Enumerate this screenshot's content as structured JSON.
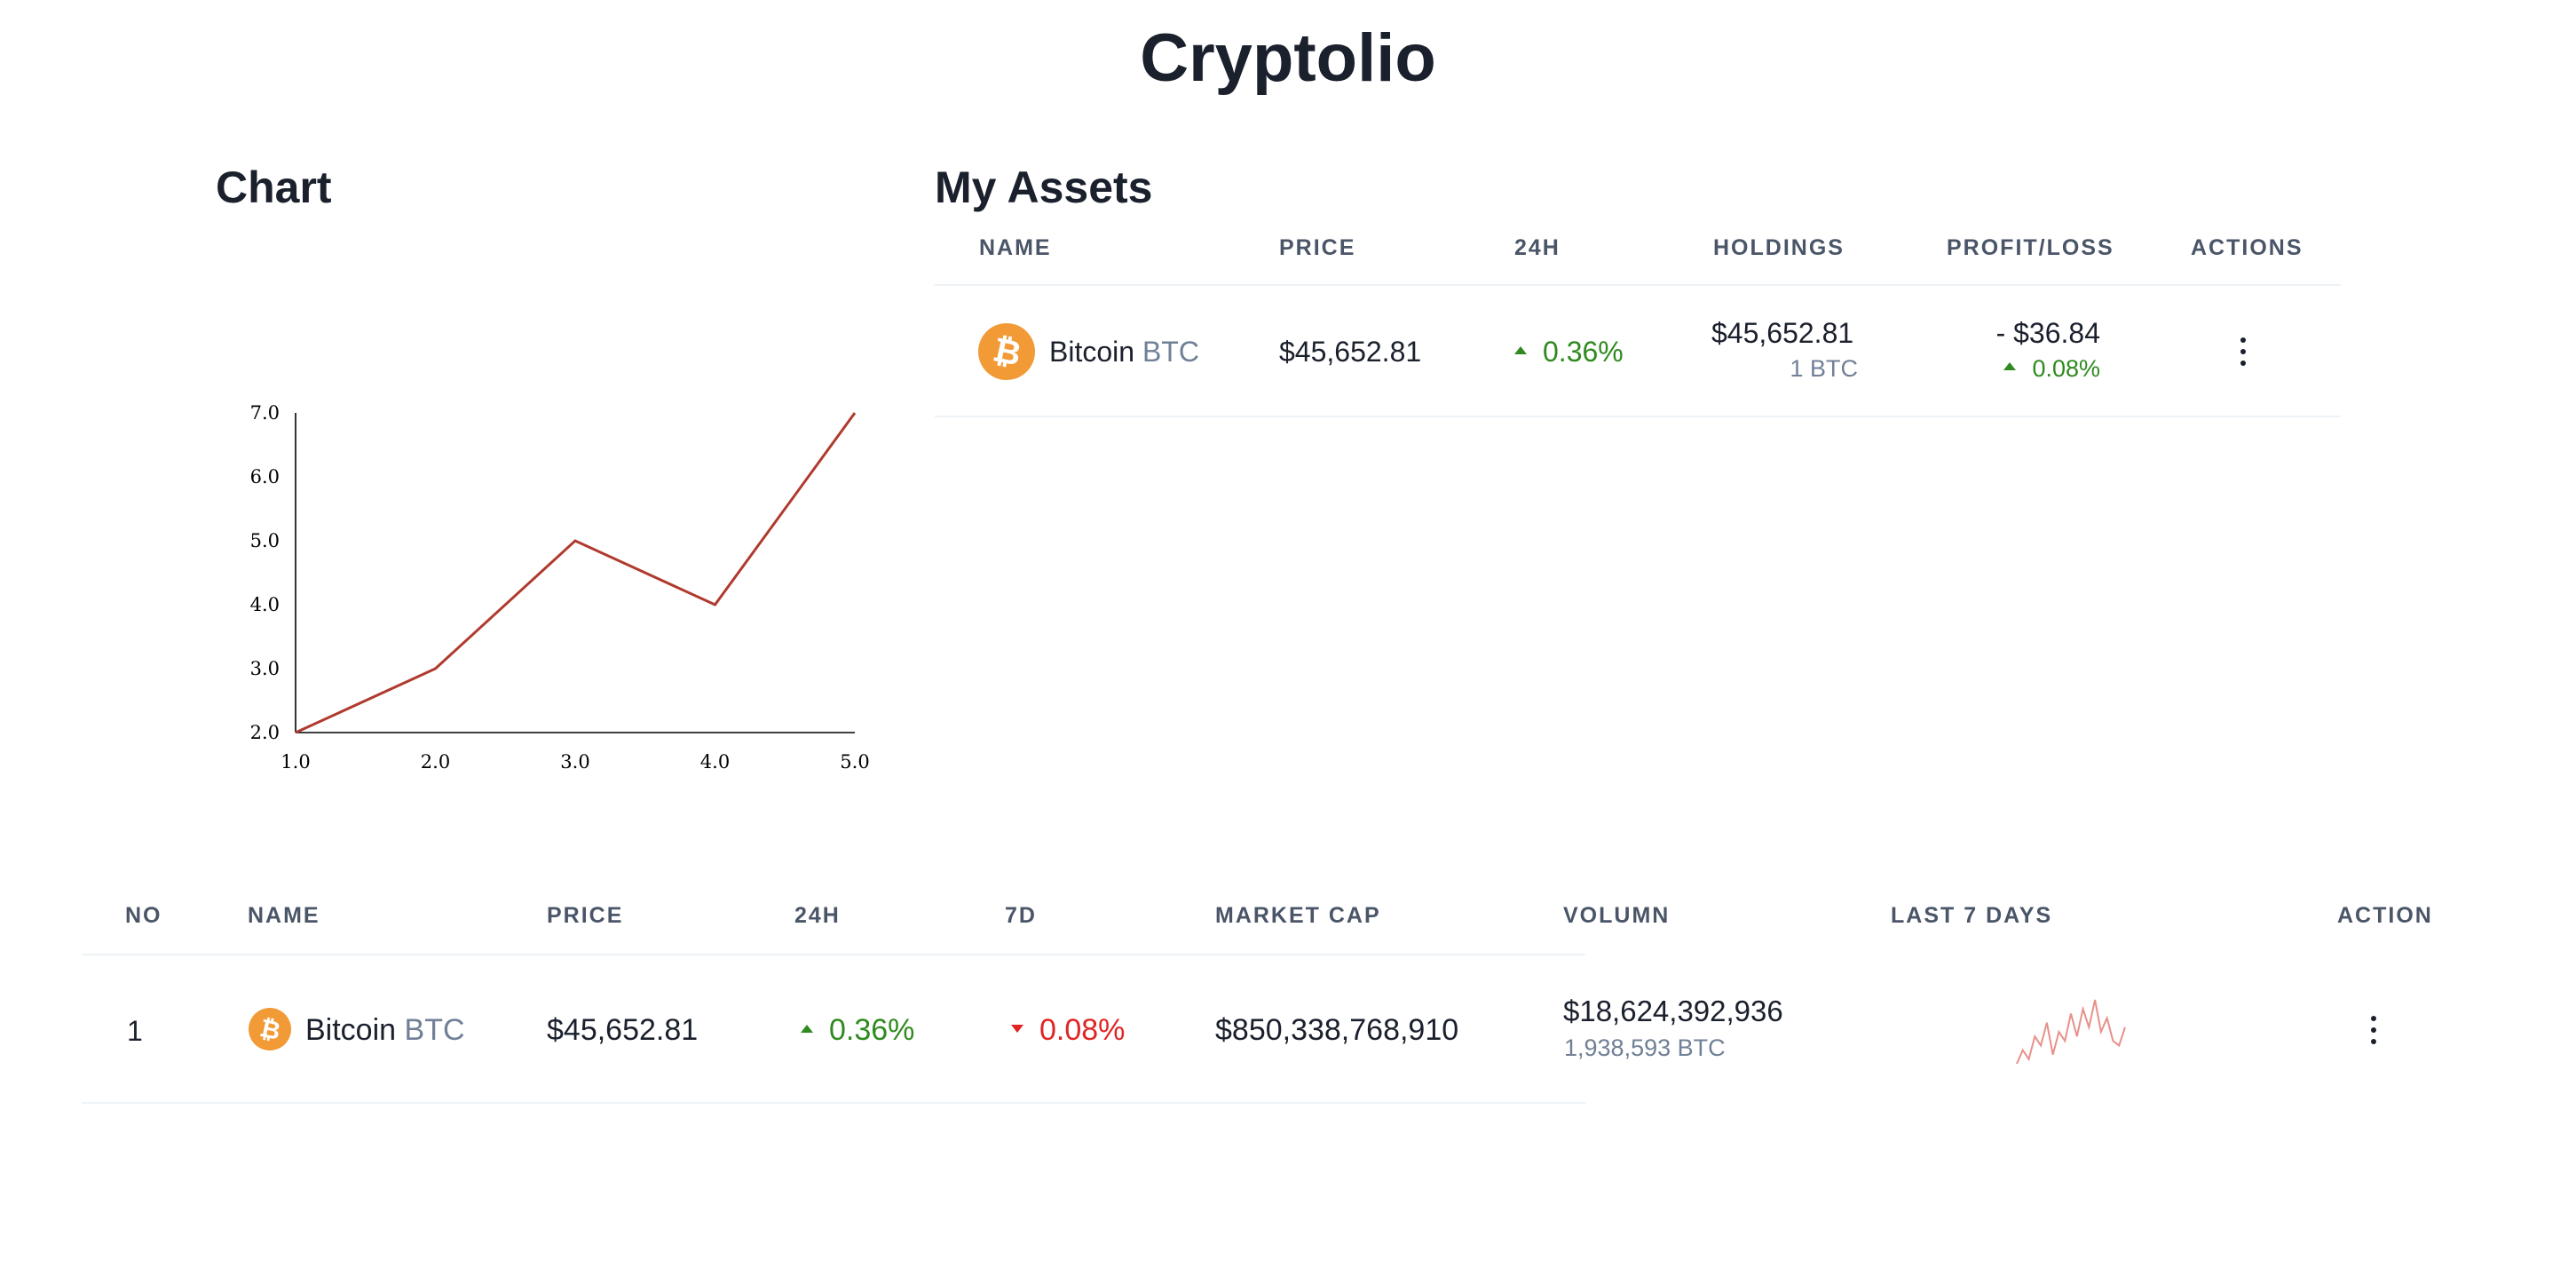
{
  "app": {
    "title": "Cryptolio"
  },
  "chart": {
    "title": "Chart"
  },
  "chart_data": {
    "type": "line",
    "x": [
      1.0,
      2.0,
      3.0,
      4.0,
      5.0
    ],
    "series": [
      {
        "values": [
          2.0,
          3.0,
          5.0,
          4.0,
          7.0
        ]
      }
    ],
    "x_ticks": [
      "1.0",
      "2.0",
      "3.0",
      "4.0",
      "5.0"
    ],
    "y_ticks": [
      "2.0",
      "3.0",
      "4.0",
      "5.0",
      "6.0",
      "7.0"
    ],
    "xlim": [
      1.0,
      5.0
    ],
    "ylim": [
      2.0,
      7.0
    ],
    "grid": false,
    "line_color": "#b03a2e",
    "title": "",
    "xlabel": "",
    "ylabel": ""
  },
  "assets": {
    "title": "My Assets",
    "headers": {
      "name": "NAME",
      "price": "PRICE",
      "change24h": "24H",
      "holdings": "HOLDINGS",
      "profit_loss": "PROFIT/LOSS",
      "actions": "ACTIONS"
    },
    "rows": [
      {
        "logo_symbol": "₿",
        "name": "Bitcoin",
        "ticker": "BTC",
        "price": "$45,652.81",
        "change24h": "0.36%",
        "change24h_direction": "up",
        "holdings_value": "$45,652.81",
        "holdings_amount": "1 BTC",
        "profit_loss": "- $36.84",
        "profit_loss_pct": "0.08%",
        "profit_loss_direction": "up"
      }
    ]
  },
  "market": {
    "headers": {
      "no": "NO",
      "name": "NAME",
      "price": "PRICE",
      "change24h": "24H",
      "change7d": "7D",
      "market_cap": "MARKET CAP",
      "volume": "VOLUMN",
      "last7days": "LAST 7 DAYS",
      "action": "ACTION"
    },
    "rows": [
      {
        "no": "1",
        "logo_symbol": "₿",
        "name": "Bitcoin",
        "ticker": "BTC",
        "price": "$45,652.81",
        "change24h": "0.36%",
        "change24h_direction": "up",
        "change7d": "0.08%",
        "change7d_direction": "down",
        "market_cap": "$850,338,768,910",
        "volume_usd": "$18,624,392,936",
        "volume_coin": "1,938,593 BTC",
        "sparkline": [
          2,
          5,
          3,
          8,
          6,
          11,
          4,
          9,
          7,
          13,
          8,
          14,
          10,
          16,
          9,
          12,
          7,
          6,
          10
        ],
        "sparkline_color": "#e8908a"
      }
    ]
  },
  "colors": {
    "positive": "#2f8a1f",
    "negative": "#e02424",
    "bitcoin": "#f29a36",
    "text": "#1a202c",
    "header": "#4a5568",
    "muted": "#718096"
  }
}
